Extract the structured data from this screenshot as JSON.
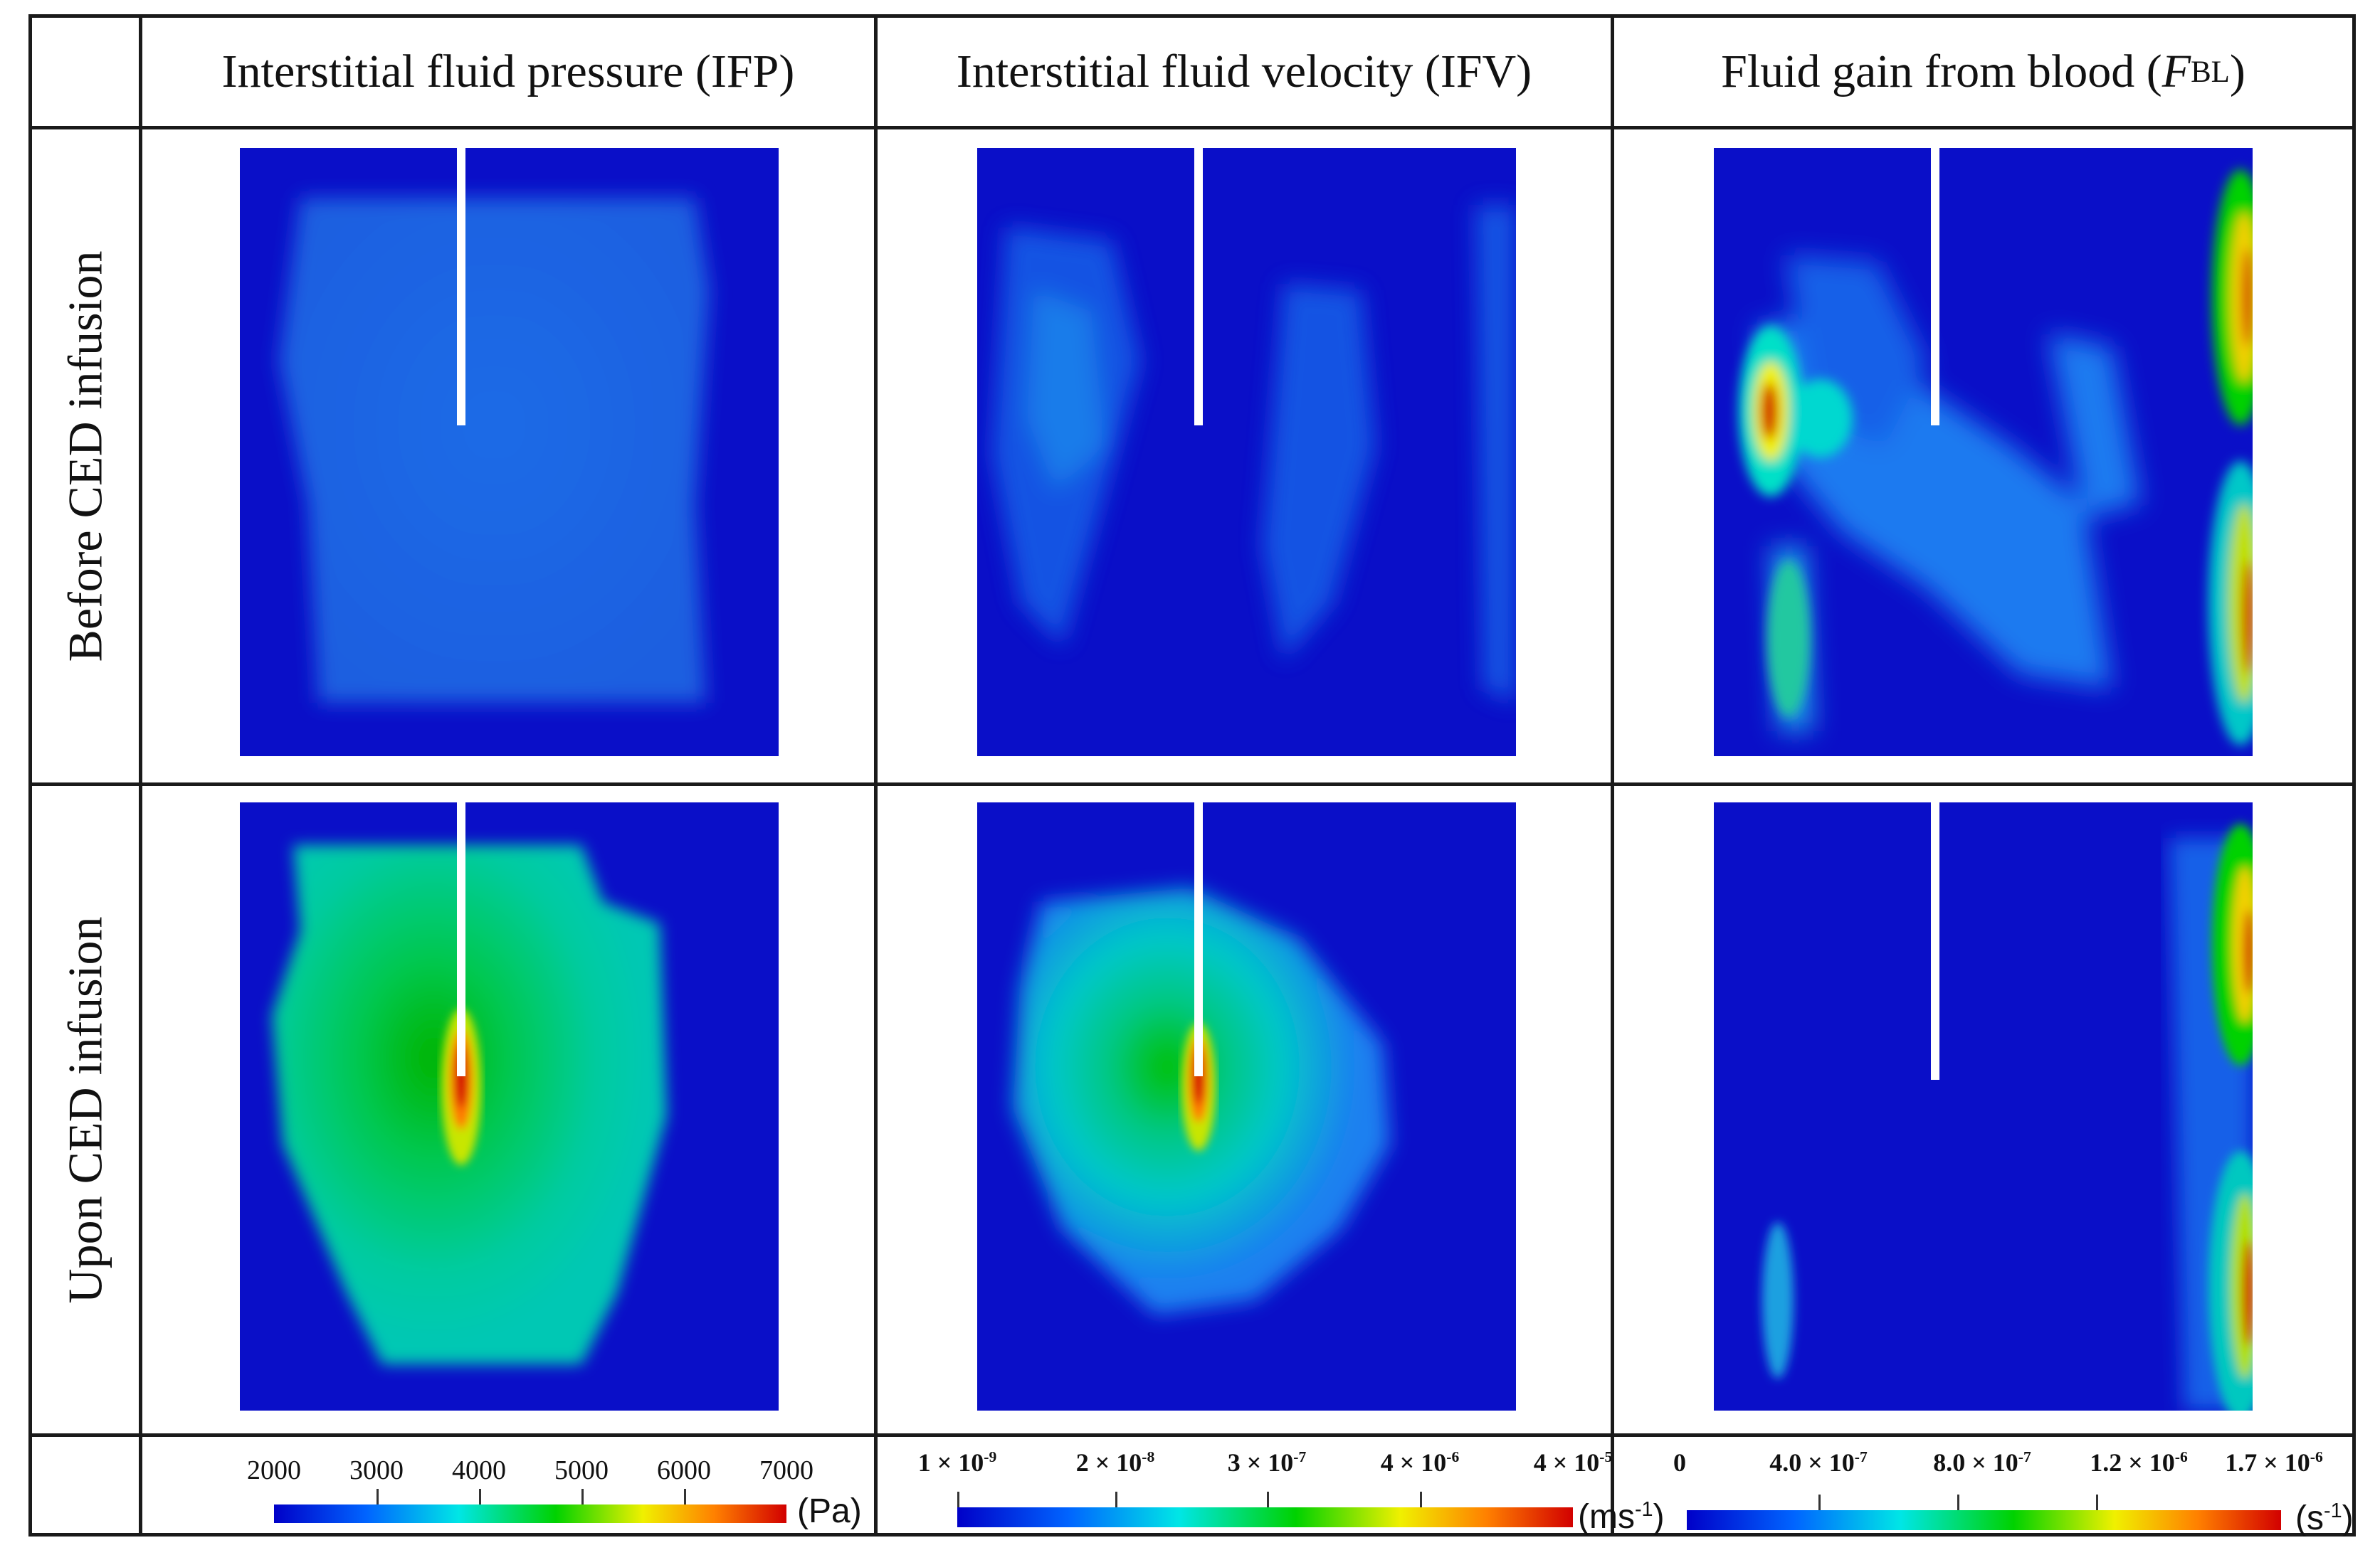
{
  "columns": {
    "ifp": "Interstitial fluid pressure (IFP)",
    "ifv": "Interstitial fluid velocity (IFV)",
    "fbl_prefix": "Fluid gain from blood (",
    "fbl_var": "F",
    "fbl_sub": "BL",
    "fbl_suffix": ")"
  },
  "rows": {
    "before": "Before CED infusion",
    "upon": "Upon CED infusion"
  },
  "colorbars": {
    "ifp": {
      "ticks": [
        "2000",
        "3000",
        "4000",
        "5000",
        "6000",
        "7000"
      ],
      "unit": "(Pa)"
    },
    "ifv": {
      "ticks": [
        {
          "base": "1 × 10",
          "exp": "-9"
        },
        {
          "base": "2 × 10",
          "exp": "-8"
        },
        {
          "base": "3 × 10",
          "exp": "-7"
        },
        {
          "base": "4 × 10",
          "exp": "-6"
        },
        {
          "base": "4 × 10",
          "exp": "-5"
        }
      ],
      "unit_base": "(ms",
      "unit_exp": "-1",
      "unit_end": ")"
    },
    "fbl": {
      "ticks": [
        {
          "base": "0",
          "exp": ""
        },
        {
          "base": "4.0 × 10",
          "exp": "-7"
        },
        {
          "base": "8.0 × 10",
          "exp": "-7"
        },
        {
          "base": "1.2 × 10",
          "exp": "-6"
        },
        {
          "base": "1.7 × 10",
          "exp": "-6"
        }
      ],
      "unit_base": "(s",
      "unit_exp": "-1",
      "unit_end": ")"
    }
  },
  "colors": {
    "field_low": "#0a0fc8",
    "jet": [
      "#0000c8",
      "#0064ff",
      "#00e6e6",
      "#00d200",
      "#f0f000",
      "#ff8000",
      "#d20000"
    ]
  }
}
